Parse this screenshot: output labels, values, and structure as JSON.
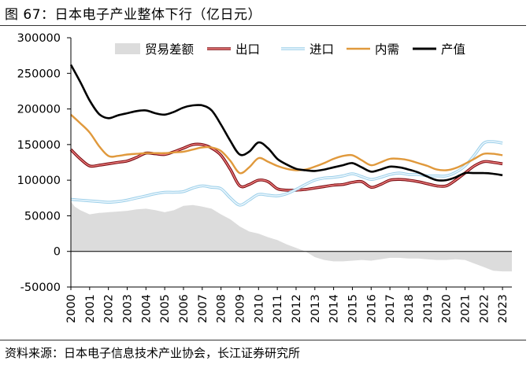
{
  "figure_title": "图 67：日本电子产业整体下行（亿日元）",
  "source_note": "资料来源：日本电子信息技术产业协会，长江证券研究所",
  "colors": {
    "trade_balance": "#dcdcdc",
    "export": "#d9262e",
    "import": "#bfe0f2",
    "demand": "#e0993c",
    "output": "#000000"
  },
  "chart_data": {
    "type": "line",
    "ylim": [
      -50000,
      300000
    ],
    "yticks": [
      -50000,
      0,
      50000,
      100000,
      150000,
      200000,
      250000,
      300000
    ],
    "xlabels": [
      "2000",
      "2001",
      "2002",
      "2003",
      "2004",
      "2005",
      "2006",
      "2007",
      "2008",
      "2009",
      "2010",
      "2011",
      "2012",
      "2013",
      "2014",
      "2015",
      "2016",
      "2017",
      "2018",
      "2019",
      "2020",
      "2021",
      "2022",
      "2023"
    ],
    "x_range": [
      2000,
      2023.5
    ],
    "legend_position": "top",
    "series": [
      {
        "name": "贸易差额",
        "kind": "area",
        "color_key": "trade_balance",
        "x": [
          2000,
          2000.2,
          2000.5,
          2001,
          2001.5,
          2002,
          2002.5,
          2003,
          2003.5,
          2004,
          2004.5,
          2005,
          2005.5,
          2006,
          2006.5,
          2007,
          2007.5,
          2008,
          2008.5,
          2009,
          2009.5,
          2010,
          2010.5,
          2011,
          2011.5,
          2012,
          2012.5,
          2013,
          2013.5,
          2014,
          2014.5,
          2015,
          2015.5,
          2016,
          2016.5,
          2017,
          2017.5,
          2018,
          2018.5,
          2019,
          2019.5,
          2020,
          2020.5,
          2021,
          2021.5,
          2022,
          2022.5,
          2023,
          2023.5
        ],
        "y": [
          70000,
          63000,
          58000,
          52000,
          54000,
          55000,
          56000,
          57000,
          59000,
          60000,
          58000,
          55000,
          58000,
          64000,
          65000,
          63000,
          60000,
          52000,
          45000,
          35000,
          28000,
          25000,
          20000,
          16000,
          10000,
          5000,
          0,
          -8000,
          -12000,
          -14000,
          -14000,
          -13000,
          -12000,
          -13000,
          -11000,
          -9000,
          -9000,
          -10000,
          -10000,
          -11000,
          -12000,
          -12000,
          -11000,
          -12000,
          -17000,
          -22000,
          -27000,
          -28000,
          -28000
        ]
      },
      {
        "name": "出口",
        "kind": "line",
        "color_key": "export",
        "x": [
          2000,
          2000.5,
          2001,
          2001.5,
          2002,
          2002.5,
          2003,
          2003.5,
          2004,
          2004.5,
          2005,
          2005.5,
          2006,
          2006.5,
          2007,
          2007.5,
          2008,
          2008.5,
          2009,
          2009.5,
          2010,
          2010.5,
          2011,
          2011.5,
          2012,
          2012.5,
          2013,
          2013.5,
          2014,
          2014.5,
          2015,
          2015.5,
          2016,
          2016.5,
          2017,
          2017.5,
          2018,
          2018.5,
          2019,
          2019.5,
          2020,
          2020.5,
          2021,
          2021.5,
          2022,
          2022.5,
          2023
        ],
        "y": [
          143000,
          130000,
          120000,
          121000,
          123000,
          125000,
          127000,
          132000,
          138000,
          137000,
          136000,
          140000,
          145000,
          150000,
          150000,
          145000,
          135000,
          115000,
          92000,
          94000,
          100000,
          98000,
          88000,
          86000,
          86000,
          87000,
          89000,
          91000,
          93000,
          94000,
          97000,
          98000,
          90000,
          94000,
          100000,
          101000,
          100000,
          98000,
          95000,
          92000,
          92000,
          100000,
          110000,
          120000,
          126000,
          125000,
          123000
        ]
      },
      {
        "name": "进口",
        "kind": "line",
        "color_key": "import",
        "x": [
          2000,
          2000.5,
          2001,
          2001.5,
          2002,
          2002.5,
          2003,
          2003.5,
          2004,
          2004.5,
          2005,
          2005.5,
          2006,
          2006.5,
          2007,
          2007.5,
          2008,
          2008.5,
          2009,
          2009.5,
          2010,
          2010.5,
          2011,
          2011.5,
          2012,
          2012.5,
          2013,
          2013.5,
          2014,
          2014.5,
          2015,
          2015.5,
          2016,
          2016.5,
          2017,
          2017.5,
          2018,
          2018.5,
          2019,
          2019.5,
          2020,
          2020.5,
          2021,
          2021.5,
          2022,
          2022.5,
          2023
        ],
        "y": [
          73000,
          72000,
          71000,
          70000,
          69000,
          70000,
          72000,
          75000,
          78000,
          81000,
          83000,
          83000,
          84000,
          89000,
          92000,
          90000,
          88000,
          75000,
          65000,
          72000,
          80000,
          79000,
          78000,
          81000,
          87000,
          94000,
          100000,
          103000,
          104000,
          106000,
          109000,
          105000,
          101000,
          104000,
          108000,
          110000,
          108000,
          108000,
          106000,
          106000,
          106000,
          111000,
          120000,
          135000,
          152000,
          154000,
          152000
        ]
      },
      {
        "name": "内需",
        "kind": "line",
        "color_key": "demand",
        "x": [
          2000,
          2000.5,
          2001,
          2001.5,
          2002,
          2002.5,
          2003,
          2003.5,
          2004,
          2004.5,
          2005,
          2005.5,
          2006,
          2006.5,
          2007,
          2007.5,
          2008,
          2008.5,
          2009,
          2009.5,
          2010,
          2010.5,
          2011,
          2011.5,
          2012,
          2012.5,
          2013,
          2013.5,
          2014,
          2014.5,
          2015,
          2015.5,
          2016,
          2016.5,
          2017,
          2017.5,
          2018,
          2018.5,
          2019,
          2019.5,
          2020,
          2020.5,
          2021,
          2021.5,
          2022,
          2022.5,
          2023
        ],
        "y": [
          192000,
          180000,
          167000,
          148000,
          134000,
          134000,
          136000,
          137000,
          138000,
          138000,
          138000,
          139000,
          140000,
          143000,
          146000,
          146000,
          141000,
          127000,
          110000,
          118000,
          131000,
          126000,
          120000,
          116000,
          114000,
          115000,
          119000,
          124000,
          130000,
          134000,
          135000,
          128000,
          121000,
          125000,
          130000,
          130000,
          128000,
          124000,
          120000,
          115000,
          114000,
          117000,
          123000,
          130000,
          137000,
          137000,
          135000
        ]
      },
      {
        "name": "产值",
        "kind": "line",
        "color_key": "output",
        "x": [
          2000,
          2000.5,
          2001,
          2001.5,
          2002,
          2002.5,
          2003,
          2003.5,
          2004,
          2004.5,
          2005,
          2005.5,
          2006,
          2006.5,
          2007,
          2007.5,
          2008,
          2008.5,
          2009,
          2009.5,
          2010,
          2010.5,
          2011,
          2011.5,
          2012,
          2012.5,
          2013,
          2013.5,
          2014,
          2014.5,
          2015,
          2015.5,
          2016,
          2016.5,
          2017,
          2017.5,
          2018,
          2018.5,
          2019,
          2019.5,
          2020,
          2020.5,
          2021,
          2021.5,
          2022,
          2022.5,
          2023
        ],
        "y": [
          262000,
          238000,
          212000,
          193000,
          187000,
          191000,
          194000,
          197000,
          198000,
          194000,
          192000,
          196000,
          202000,
          205000,
          205000,
          198000,
          178000,
          155000,
          136000,
          140000,
          153000,
          145000,
          130000,
          122000,
          116000,
          114000,
          113000,
          115000,
          118000,
          121000,
          124000,
          118000,
          112000,
          115000,
          119000,
          118000,
          115000,
          111000,
          105000,
          100000,
          100000,
          104000,
          110000,
          110000,
          110000,
          109000,
          107000
        ]
      }
    ]
  }
}
